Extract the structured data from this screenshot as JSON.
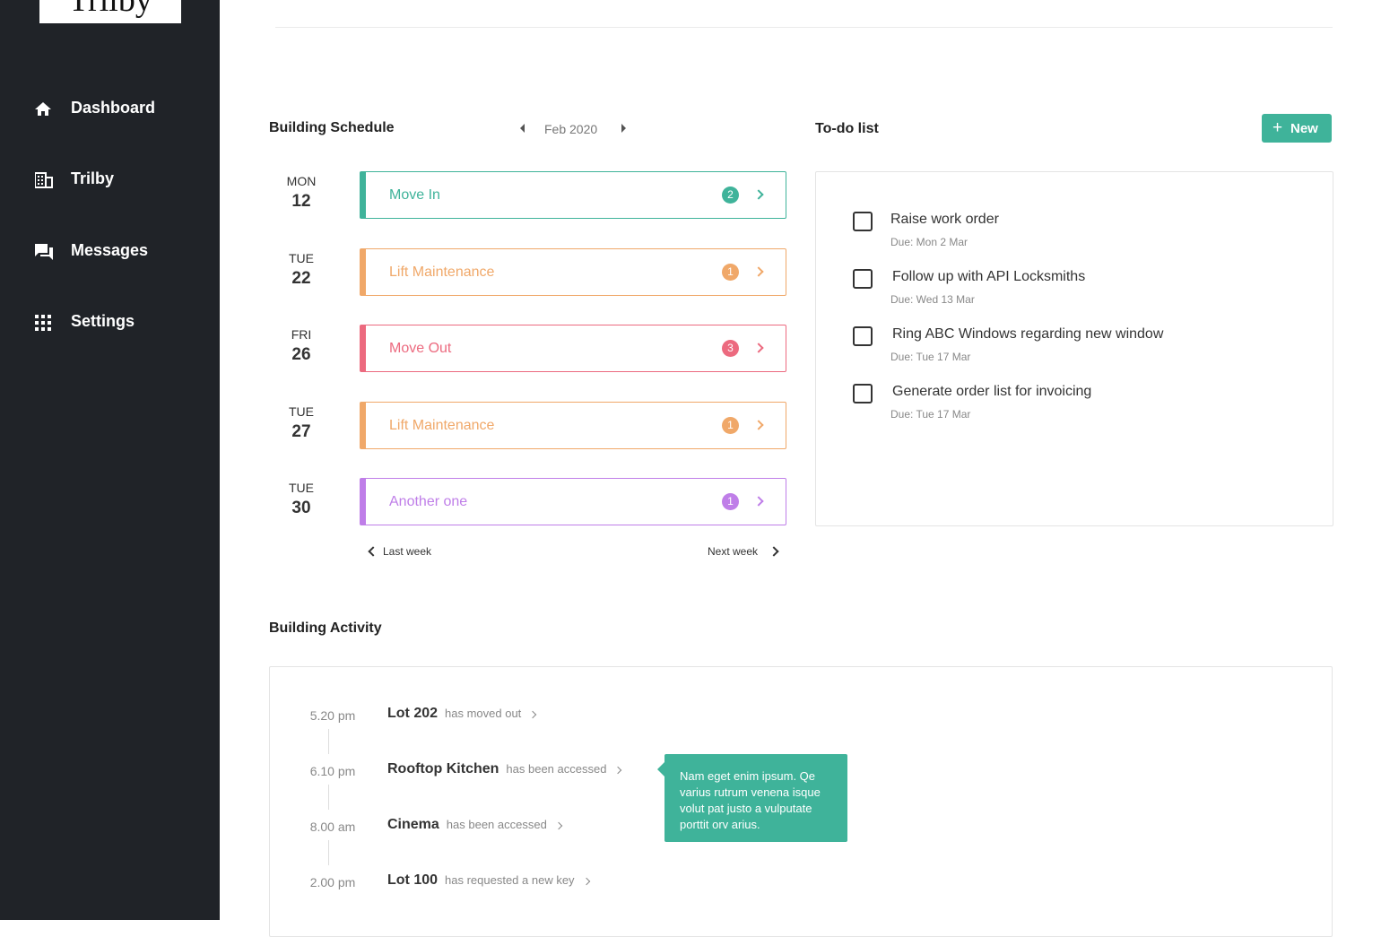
{
  "logo": "Trilby",
  "nav": {
    "items": [
      "Dashboard",
      "Trilby",
      "Messages",
      "Settings"
    ]
  },
  "schedule": {
    "title": "Building Schedule",
    "month": "Feb 2020",
    "events": [
      {
        "day": "MON",
        "date": 12,
        "label": "Move In",
        "count": 2,
        "color": "#3fb39a"
      },
      {
        "day": "TUE",
        "date": 22,
        "label": "Lift Maintenance",
        "count": 1,
        "color": "#f0a869"
      },
      {
        "day": "FRI",
        "date": 26,
        "label": "Move Out",
        "count": 3,
        "color": "#ec6a7f"
      },
      {
        "day": "TUE",
        "date": 27,
        "label": "Lift Maintenance",
        "count": 1,
        "color": "#f0a869"
      },
      {
        "day": "TUE",
        "date": 30,
        "label": "Another one",
        "count": 1,
        "color": "#bf7ee8"
      }
    ],
    "prev": "Last week",
    "next": "Next week"
  },
  "todo": {
    "title": "To-do list",
    "button": "New",
    "items": [
      {
        "title": "Raise work order",
        "due": "Due: Mon 2 Mar"
      },
      {
        "title": "Follow up with API Locksmiths",
        "due": "Due: Wed 13 Mar"
      },
      {
        "title": "Ring ABC Windows regarding new window",
        "due": "Due: Tue 17 Mar"
      },
      {
        "title": "Generate order list for invoicing",
        "due": "Due: Tue 17 Mar"
      }
    ]
  },
  "activity": {
    "title": "Building Activity",
    "items": [
      {
        "time": "5.20 pm",
        "subject": "Lot 202",
        "action": "has moved out"
      },
      {
        "time": "6.10 pm",
        "subject": "Rooftop Kitchen",
        "action": "has been accessed"
      },
      {
        "time": "8.00 am",
        "subject": "Cinema",
        "action": "has been accessed"
      },
      {
        "time": "2.00 pm",
        "subject": "Lot 100",
        "action": "has requested a new key"
      }
    ],
    "tooltip": "Nam eget enim ipsum. Qe varius rutrum venena isque volut pat justo a vulputate porttit orv arius."
  }
}
